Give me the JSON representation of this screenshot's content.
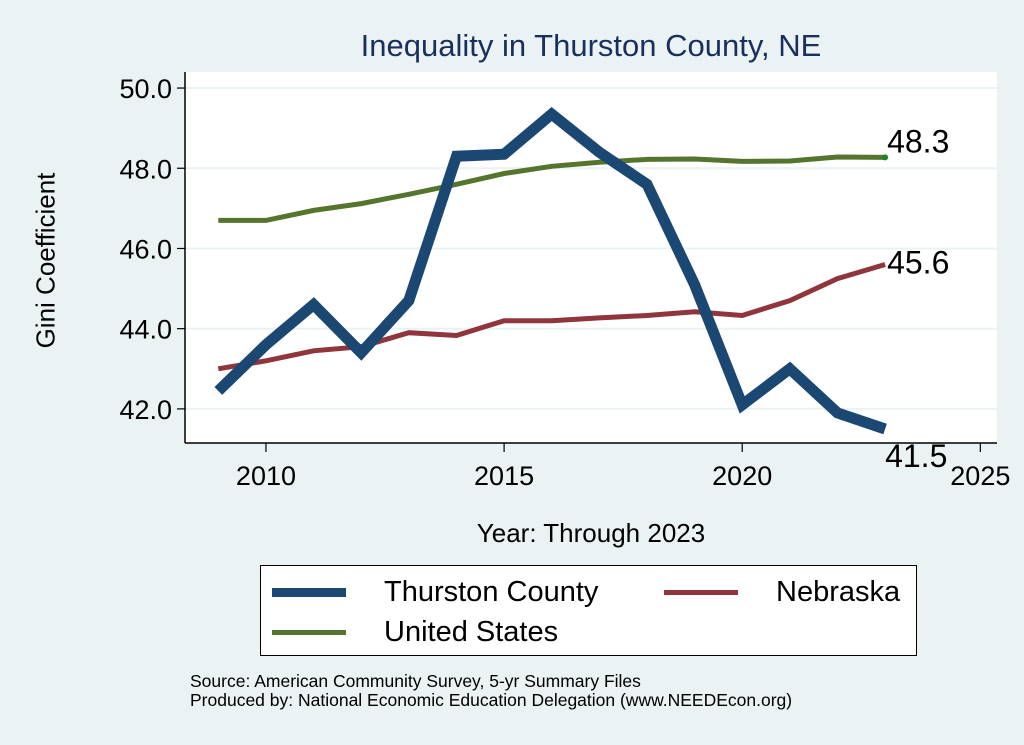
{
  "chart_data": {
    "type": "line",
    "title": "Inequality in Thurston County, NE",
    "xlabel": "Year: Through 2023",
    "ylabel": "Gini Coefficient",
    "xlim": [
      2008.3,
      2025.35
    ],
    "ylim": [
      41.15,
      50.4
    ],
    "xticks": [
      2010,
      2015,
      2020,
      2025
    ],
    "xtick_labels": [
      "2010",
      "2015",
      "2020",
      "2025"
    ],
    "yticks": [
      42,
      44,
      46,
      48,
      50
    ],
    "ytick_labels": [
      "42.0",
      "44.0",
      "46.0",
      "48.0",
      "50.0"
    ],
    "grid": true,
    "x": [
      2009,
      2010,
      2011,
      2012,
      2013,
      2014,
      2015,
      2016,
      2017,
      2018,
      2019,
      2020,
      2021,
      2022,
      2023
    ],
    "series": [
      {
        "name": "Thurston County",
        "color": "#1a4872",
        "values": [
          42.45,
          43.6,
          44.6,
          43.4,
          44.7,
          48.3,
          48.35,
          49.35,
          48.4,
          47.6,
          45.1,
          42.1,
          43.0,
          41.9,
          41.5
        ],
        "end_label": "41.5"
      },
      {
        "name": "Nebraska",
        "color": "#90353b",
        "values": [
          43.0,
          43.2,
          43.45,
          43.55,
          43.9,
          43.83,
          44.2,
          44.2,
          44.27,
          44.33,
          44.42,
          44.33,
          44.7,
          45.25,
          45.6
        ],
        "end_label": "45.6"
      },
      {
        "name": "United States",
        "color": "#55752f",
        "values": [
          46.7,
          46.7,
          46.95,
          47.12,
          47.35,
          47.6,
          47.87,
          48.05,
          48.15,
          48.22,
          48.23,
          48.17,
          48.18,
          48.28,
          48.27
        ],
        "end_label": "48.3"
      }
    ],
    "legend_position": "bottom"
  },
  "legend": {
    "items": [
      "Thurston County",
      "Nebraska",
      "United States"
    ]
  },
  "footer": {
    "source": "Source: American Community Survey, 5-yr Summary Files",
    "produced_by": "Produced by: National Economic Education Delegation (www.NEEDEcon.org)"
  },
  "colors": {
    "background": "#eaf2f3",
    "plot_background": "#ffffff",
    "title": "#1a2f5e",
    "grid": "#eaf2f3"
  }
}
